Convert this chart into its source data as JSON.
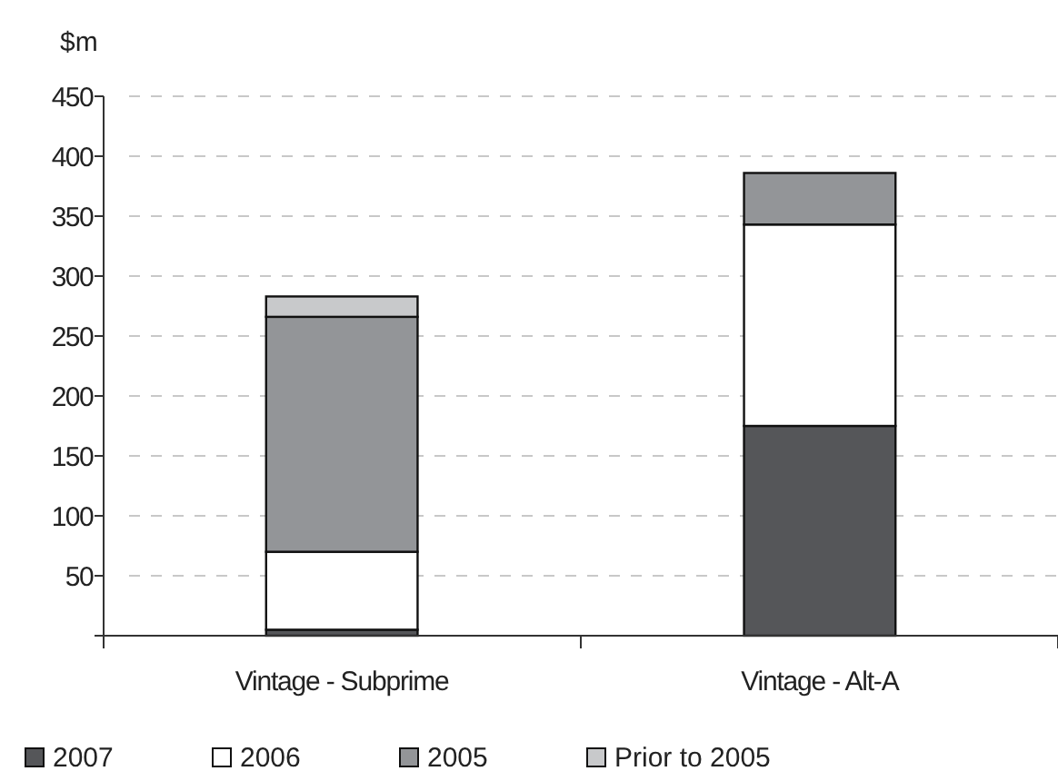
{
  "chart_data": {
    "type": "bar",
    "stacked": true,
    "ylabel": "$m",
    "categories": [
      "Vintage - Subprime",
      "Vintage - Alt-A"
    ],
    "series": [
      {
        "name": "2007",
        "color": "#555659",
        "values": [
          5,
          175
        ]
      },
      {
        "name": "2006",
        "color": "#ffffff",
        "values": [
          65,
          168
        ]
      },
      {
        "name": "2005",
        "color": "#939598",
        "values": [
          196,
          43
        ]
      },
      {
        "name": "Prior to 2005",
        "color": "#c8c9cb",
        "values": [
          17,
          0
        ]
      }
    ],
    "ylim": [
      0,
      450
    ],
    "yticks": [
      {
        "value": 0,
        "label": null
      },
      50,
      100,
      150,
      200,
      250,
      300,
      350,
      400,
      450
    ],
    "grid": "y",
    "legend": "bottom"
  }
}
